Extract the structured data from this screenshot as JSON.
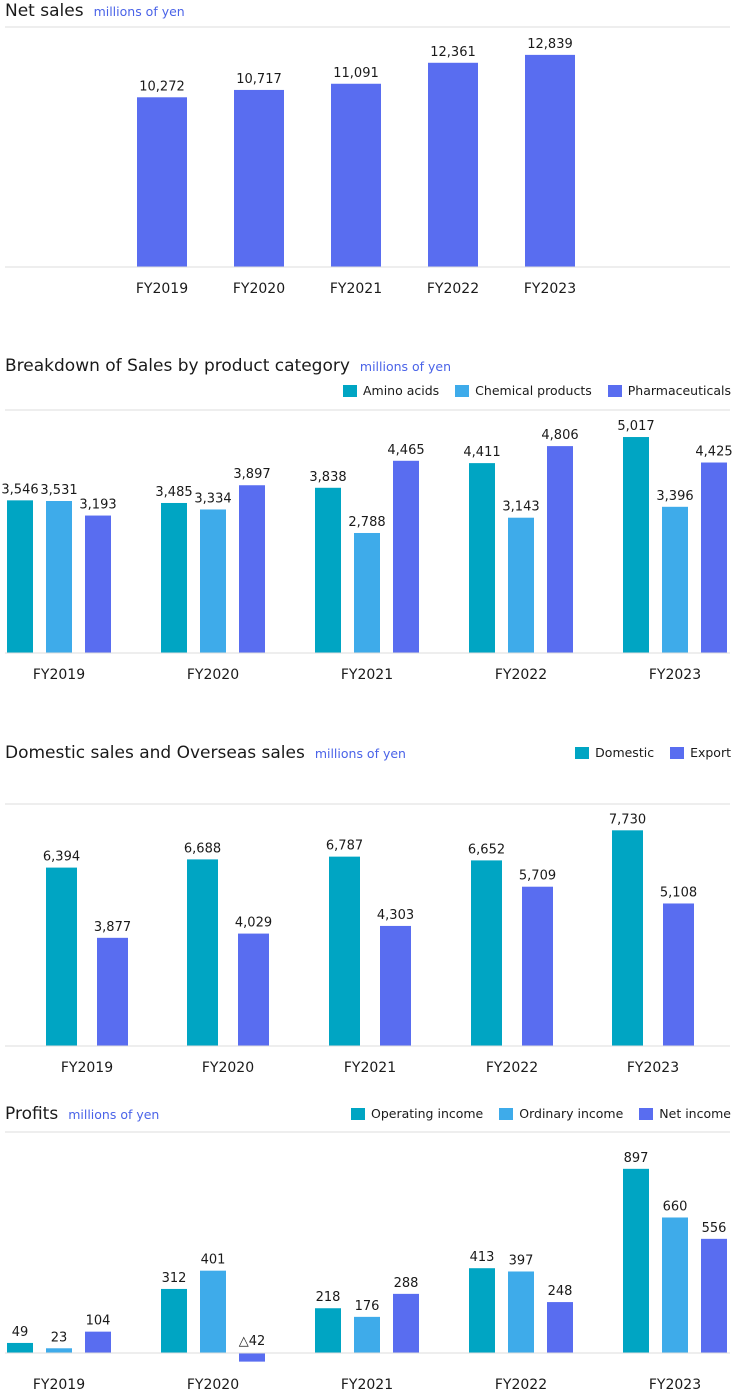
{
  "colors": {
    "amino": "#00a5c3",
    "chemical": "#3eabea",
    "pharma": "#596df0",
    "unit_text": "#4a63e8",
    "gridline": "#dcdcdc"
  },
  "chart_data": [
    {
      "id": "net_sales",
      "type": "bar",
      "title": "Net sales",
      "unit": "millions of yen",
      "categories": [
        "FY2019",
        "FY2020",
        "FY2021",
        "FY2022",
        "FY2023"
      ],
      "series": [
        {
          "values": [
            10272,
            10717,
            11091,
            12361,
            12839
          ],
          "labels": [
            "10,272",
            "10,717",
            "11,091",
            "12,361",
            "12,839"
          ],
          "color": "#596df0"
        }
      ],
      "ylim": [
        0,
        13800
      ],
      "legend": "none"
    },
    {
      "id": "breakdown",
      "type": "bar",
      "title": "Breakdown of Sales by product category",
      "unit": "millions of yen",
      "categories": [
        "FY2019",
        "FY2020",
        "FY2021",
        "FY2022",
        "FY2023"
      ],
      "series": [
        {
          "name": "Amino acids",
          "values": [
            3546,
            3485,
            3838,
            4411,
            5017
          ],
          "labels": [
            "3,546",
            "3,485",
            "3,838",
            "4,411",
            "5,017"
          ],
          "color": "#00a5c3"
        },
        {
          "name": "Chemical products",
          "values": [
            3531,
            3334,
            2788,
            3143,
            3396
          ],
          "labels": [
            "3,531",
            "3,334",
            "2,788",
            "3,143",
            "3,396"
          ],
          "color": "#3eabea"
        },
        {
          "name": "Pharmaceuticals",
          "values": [
            3193,
            3897,
            4465,
            4806,
            4425
          ],
          "labels": [
            "3,193",
            "3,897",
            "4,465",
            "4,806",
            "4,425"
          ],
          "color": "#596df0"
        }
      ],
      "ylim": [
        0,
        5250
      ],
      "legend": "top-right"
    },
    {
      "id": "domestic_overseas",
      "type": "bar",
      "title": "Domestic sales and Overseas sales",
      "unit": "millions of yen",
      "categories": [
        "FY2019",
        "FY2020",
        "FY2021",
        "FY2022",
        "FY2023"
      ],
      "series": [
        {
          "name": "Domestic",
          "values": [
            6394,
            6688,
            6787,
            6652,
            7730
          ],
          "labels": [
            "6,394",
            "6,688",
            "6,787",
            "6,652",
            "7,730"
          ],
          "color": "#00a5c3"
        },
        {
          "name": "Export",
          "values": [
            3877,
            4029,
            4303,
            5709,
            5108
          ],
          "labels": [
            "3,877",
            "4,029",
            "4,303",
            "5,709",
            "5,108"
          ],
          "color": "#596df0"
        }
      ],
      "ylim": [
        0,
        8100
      ],
      "legend": "top-right"
    },
    {
      "id": "profits",
      "type": "bar",
      "title": "Profits",
      "unit": "millions of yen",
      "categories": [
        "FY2019",
        "FY2020",
        "FY2021",
        "FY2022",
        "FY2023"
      ],
      "series": [
        {
          "name": "Operating income",
          "values": [
            49,
            312,
            218,
            413,
            897
          ],
          "labels": [
            "49",
            "312",
            "218",
            "413",
            "897"
          ],
          "color": "#00a5c3"
        },
        {
          "name": "Ordinary income",
          "values": [
            23,
            401,
            176,
            397,
            660
          ],
          "labels": [
            "23",
            "401",
            "176",
            "397",
            "660"
          ],
          "color": "#3eabea"
        },
        {
          "name": "Net income",
          "values": [
            104,
            -42,
            288,
            248,
            556
          ],
          "labels": [
            "104",
            "△42",
            "288",
            "248",
            "556"
          ],
          "color": "#596df0"
        }
      ],
      "ylim": [
        -50,
        940
      ],
      "legend": "top-right"
    }
  ]
}
